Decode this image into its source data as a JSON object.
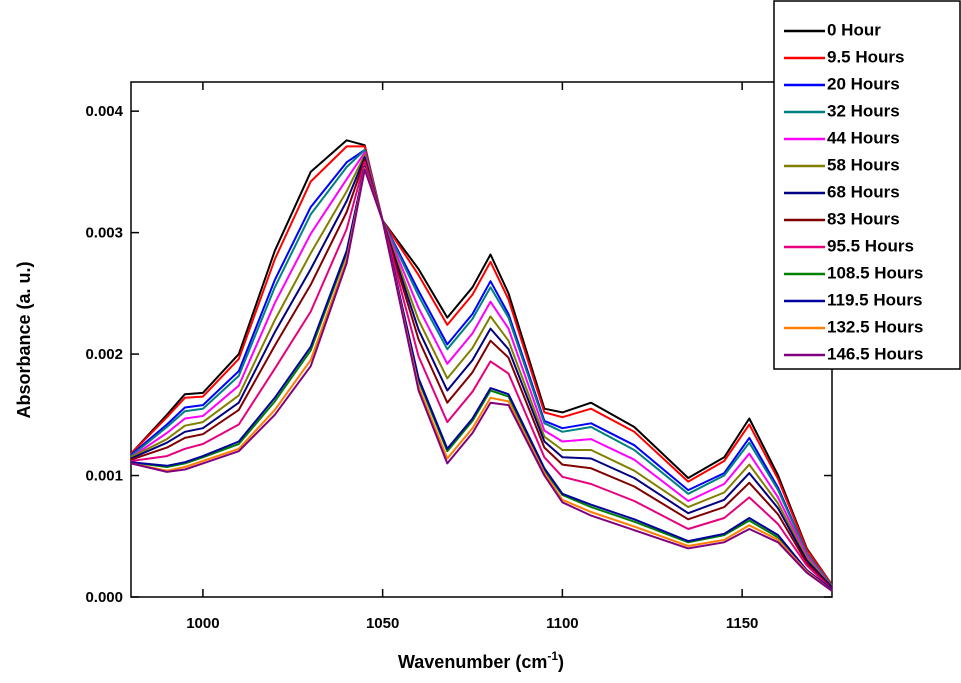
{
  "chart_data": {
    "type": "line",
    "x_label": {
      "text": "Wavenumber (cm",
      "sup": "-1",
      "end": ")"
    },
    "y_label": "Absorbance (a. u.)",
    "xlim": [
      980,
      1175
    ],
    "ylim": [
      0,
      0.00424
    ],
    "xticks": [
      1000,
      1050,
      1100,
      1150
    ],
    "yticks": [
      {
        "value": 0,
        "label": "0.000"
      },
      {
        "value": 0.001,
        "label": "0.001"
      },
      {
        "value": 0.002,
        "label": "0.002"
      },
      {
        "value": 0.003,
        "label": "0.003"
      },
      {
        "value": 0.004,
        "label": "0.004"
      }
    ],
    "legend": "upper right",
    "x": [
      980,
      990,
      995,
      1000,
      1010,
      1020,
      1030,
      1040,
      1045,
      1050,
      1060,
      1068,
      1075,
      1080,
      1085,
      1095,
      1100,
      1108,
      1120,
      1135,
      1145,
      1152,
      1160,
      1168,
      1175
    ],
    "series": [
      {
        "name": "0 Hour",
        "color": "#000000",
        "values": [
          0.00118,
          0.0015,
          0.00167,
          0.00168,
          0.002,
          0.00285,
          0.0035,
          0.00376,
          0.00372,
          0.0031,
          0.0027,
          0.0023,
          0.00255,
          0.00282,
          0.0025,
          0.00155,
          0.00152,
          0.0016,
          0.0014,
          0.00098,
          0.00115,
          0.00147,
          0.001,
          0.0004,
          0.0001
        ]
      },
      {
        "name": "9.5 Hours",
        "color": "#ff0000",
        "values": [
          0.00118,
          0.00148,
          0.00164,
          0.00165,
          0.00196,
          0.00278,
          0.00342,
          0.00371,
          0.00371,
          0.0031,
          0.00265,
          0.00224,
          0.00249,
          0.00276,
          0.00245,
          0.00152,
          0.00148,
          0.00155,
          0.00136,
          0.00095,
          0.00112,
          0.00142,
          0.00097,
          0.00039,
          0.0001
        ]
      },
      {
        "name": "20 Hours",
        "color": "#0000ff",
        "values": [
          0.00117,
          0.00142,
          0.00156,
          0.00158,
          0.00186,
          0.00261,
          0.00321,
          0.00358,
          0.00368,
          0.0031,
          0.00252,
          0.00208,
          0.00233,
          0.0026,
          0.00233,
          0.00145,
          0.00139,
          0.00143,
          0.00125,
          0.00088,
          0.00102,
          0.00131,
          0.0009,
          0.00036,
          9e-05
        ]
      },
      {
        "name": "32 Hours",
        "color": "#008080",
        "values": [
          0.00116,
          0.0014,
          0.00153,
          0.00155,
          0.00182,
          0.00255,
          0.00315,
          0.00354,
          0.00368,
          0.0031,
          0.00248,
          0.00204,
          0.00229,
          0.00255,
          0.0023,
          0.00143,
          0.00136,
          0.0014,
          0.00121,
          0.00085,
          0.001,
          0.00127,
          0.00088,
          0.00036,
          9e-05
        ]
      },
      {
        "name": "44 Hours",
        "color": "#ff00ff",
        "values": [
          0.00115,
          0.00135,
          0.00147,
          0.00149,
          0.00174,
          0.00242,
          0.00299,
          0.00344,
          0.00366,
          0.0031,
          0.00238,
          0.00192,
          0.00217,
          0.00243,
          0.00221,
          0.00137,
          0.00128,
          0.0013,
          0.00113,
          0.00079,
          0.00093,
          0.00118,
          0.00082,
          0.00034,
          8e-05
        ]
      },
      {
        "name": "58 Hours",
        "color": "#808000",
        "values": [
          0.00115,
          0.0013,
          0.00141,
          0.00144,
          0.00166,
          0.00228,
          0.00283,
          0.00334,
          0.00364,
          0.0031,
          0.00228,
          0.0018,
          0.00205,
          0.00231,
          0.00211,
          0.00132,
          0.00121,
          0.00121,
          0.00104,
          0.00074,
          0.00086,
          0.00109,
          0.00077,
          0.00032,
          8e-05
        ]
      },
      {
        "name": "68 Hours",
        "color": "#000080",
        "values": [
          0.00114,
          0.00127,
          0.00136,
          0.00139,
          0.0016,
          0.00218,
          0.0027,
          0.00326,
          0.00362,
          0.0031,
          0.0022,
          0.0017,
          0.00195,
          0.00221,
          0.00204,
          0.00128,
          0.00115,
          0.00114,
          0.00098,
          0.00069,
          0.0008,
          0.00102,
          0.00073,
          0.0003,
          8e-05
        ]
      },
      {
        "name": "83 Hours",
        "color": "#800000",
        "values": [
          0.00113,
          0.00123,
          0.00131,
          0.00134,
          0.00154,
          0.00207,
          0.00257,
          0.00317,
          0.0036,
          0.0031,
          0.00212,
          0.0016,
          0.00185,
          0.00211,
          0.00197,
          0.00123,
          0.00109,
          0.00106,
          0.00091,
          0.00064,
          0.00074,
          0.00094,
          0.00068,
          0.00028,
          7e-05
        ]
      },
      {
        "name": "95.5 Hours",
        "color": "#e6007e",
        "values": [
          0.00112,
          0.00116,
          0.00122,
          0.00126,
          0.00142,
          0.00188,
          0.00235,
          0.00303,
          0.00358,
          0.0031,
          0.00198,
          0.00144,
          0.00169,
          0.00194,
          0.00184,
          0.00115,
          0.00099,
          0.00093,
          0.00079,
          0.00056,
          0.00065,
          0.00082,
          0.0006,
          0.00026,
          6e-05
        ]
      },
      {
        "name": "108.5 Hours",
        "color": "#008000",
        "values": [
          0.00111,
          0.00107,
          0.0011,
          0.00115,
          0.00126,
          0.00161,
          0.00203,
          0.00283,
          0.00354,
          0.0031,
          0.00178,
          0.0012,
          0.00145,
          0.0017,
          0.00165,
          0.00104,
          0.00084,
          0.00074,
          0.00062,
          0.00045,
          0.00051,
          0.00063,
          0.00049,
          0.00022,
          5e-05
        ]
      },
      {
        "name": "119.5 Hours",
        "color": "#0000a0",
        "values": [
          0.00111,
          0.00108,
          0.00111,
          0.00116,
          0.00128,
          0.00164,
          0.00206,
          0.00285,
          0.00354,
          0.0031,
          0.0018,
          0.00122,
          0.00147,
          0.00172,
          0.00167,
          0.00106,
          0.00085,
          0.00076,
          0.00064,
          0.00046,
          0.00052,
          0.00065,
          0.00051,
          0.00022,
          6e-05
        ]
      },
      {
        "name": "132.5 Hours",
        "color": "#ff8000",
        "values": [
          0.0011,
          0.00104,
          0.00107,
          0.00112,
          0.00122,
          0.00154,
          0.00195,
          0.00278,
          0.00353,
          0.0031,
          0.00173,
          0.00114,
          0.00139,
          0.00164,
          0.00161,
          0.00102,
          0.0008,
          0.0007,
          0.00058,
          0.00042,
          0.00047,
          0.00059,
          0.00047,
          0.00021,
          5e-05
        ]
      },
      {
        "name": "146.5 Hours",
        "color": "#800080",
        "values": [
          0.0011,
          0.00103,
          0.00105,
          0.0011,
          0.0012,
          0.0015,
          0.0019,
          0.00275,
          0.00352,
          0.0031,
          0.0017,
          0.0011,
          0.00135,
          0.0016,
          0.00158,
          0.001,
          0.00078,
          0.00067,
          0.00055,
          0.0004,
          0.00045,
          0.00056,
          0.00045,
          0.0002,
          5e-05
        ]
      }
    ]
  }
}
